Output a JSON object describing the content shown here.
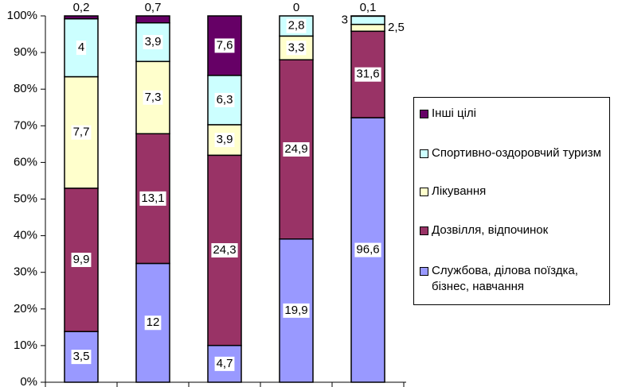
{
  "chart_data": {
    "type": "stacked_percent",
    "categories": [
      null,
      null,
      null,
      null,
      null
    ],
    "ylim": [
      0,
      100
    ],
    "yticks": [
      {
        "value": 0,
        "label": "0%"
      },
      {
        "value": 10,
        "label": "10%"
      },
      {
        "value": 20,
        "label": "20%"
      },
      {
        "value": 30,
        "label": "30%"
      },
      {
        "value": 40,
        "label": "40%"
      },
      {
        "value": 50,
        "label": "50%"
      },
      {
        "value": 60,
        "label": "60%"
      },
      {
        "value": 70,
        "label": "70%"
      },
      {
        "value": 80,
        "label": "80%"
      },
      {
        "value": 90,
        "label": "90%"
      },
      {
        "value": 100,
        "label": "100%"
      }
    ],
    "series": [
      {
        "name": "Службова, ділова поїздка, бізнес, навчання",
        "color": "#9999ff",
        "values": [
          3.5,
          12,
          4.7,
          19.9,
          96.6
        ],
        "value_labels": [
          "3,5",
          "12",
          "4,7",
          "19,9",
          "96,6"
        ]
      },
      {
        "name": "Дозвілля, відпочинок",
        "color": "#993366",
        "values": [
          9.9,
          13.1,
          24.3,
          24.9,
          31.6
        ],
        "value_labels": [
          "9,9",
          "13,1",
          "24,3",
          "24,9",
          "31,6"
        ]
      },
      {
        "name": "Лікування",
        "color": "#ffffcc",
        "values": [
          7.7,
          7.3,
          3.9,
          3.3,
          2.5
        ],
        "value_labels": [
          "7,7",
          "7,3",
          "3,9",
          "3,3",
          "2,5"
        ]
      },
      {
        "name": "Спортивно-оздоровчий туризм",
        "color": "#ccffff",
        "values": [
          4,
          3.9,
          6.3,
          2.8,
          3
        ],
        "value_labels": [
          "4",
          "3,9",
          "6,3",
          "2,8",
          "3"
        ]
      },
      {
        "name": "Інші цілі",
        "color": "#660066",
        "values": [
          0.2,
          0.7,
          7.6,
          0,
          0.1
        ],
        "value_labels": [
          "0,2",
          "0,7",
          "7,6",
          "0",
          "0,1"
        ]
      }
    ],
    "legend": "right"
  }
}
